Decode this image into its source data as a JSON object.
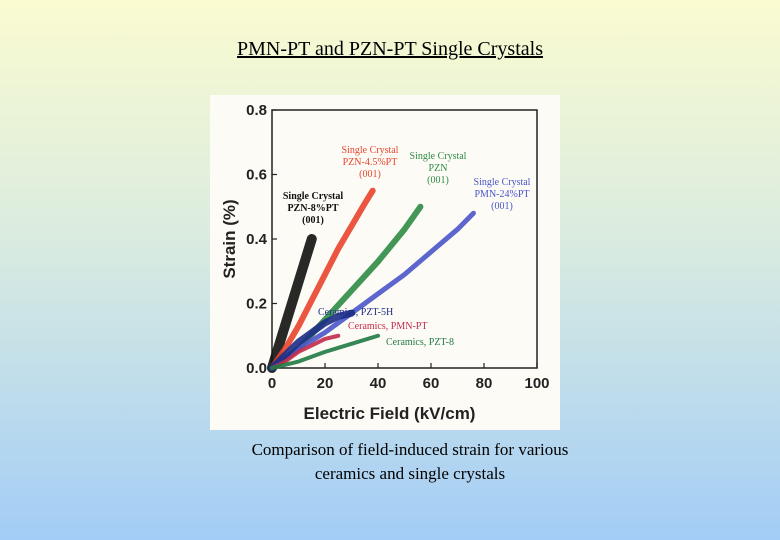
{
  "slide": {
    "title": "PMN-PT and PZN-PT Single Crystals",
    "caption": "Comparison of field-induced strain for various\nceramics and single crystals"
  },
  "chart_data": {
    "type": "line",
    "xlabel": "Electric Field (kV/cm)",
    "ylabel": "Strain (%)",
    "xlim": [
      0,
      100
    ],
    "ylim": [
      0,
      0.8
    ],
    "xticks": [
      "0",
      "20",
      "40",
      "60",
      "80",
      "100"
    ],
    "yticks": [
      "0.0",
      "0.2",
      "0.4",
      "0.6",
      "0.8"
    ],
    "grid": false,
    "legend": "inline labels",
    "series": [
      {
        "name": "Single Crystal PZN-8%PT (001)",
        "label_lines": [
          "Single Crystal",
          "PZN-8%PT",
          "(001)"
        ],
        "color": "#111111",
        "x": [
          0,
          3,
          6,
          9,
          12,
          15
        ],
        "y": [
          0,
          0.08,
          0.16,
          0.24,
          0.32,
          0.4
        ]
      },
      {
        "name": "Single Crystal PZN-4.5%PT (001)",
        "label_lines": [
          "Single Crystal",
          "PZN-4.5%PT",
          "(001)"
        ],
        "color": "#e8442c",
        "x": [
          0,
          5,
          10,
          15,
          20,
          25,
          30,
          35,
          38
        ],
        "y": [
          0,
          0.06,
          0.13,
          0.21,
          0.29,
          0.37,
          0.44,
          0.51,
          0.55
        ]
      },
      {
        "name": "Single Crystal PZN (001)",
        "label_lines": [
          "Single Crystal",
          "PZN",
          "(001)"
        ],
        "color": "#2e8b45",
        "x": [
          0,
          10,
          20,
          30,
          40,
          50,
          56
        ],
        "y": [
          0,
          0.06,
          0.15,
          0.24,
          0.33,
          0.43,
          0.5
        ]
      },
      {
        "name": "Single Crystal PMN-24%PT (001)",
        "label_lines": [
          "Single Crystal",
          "PMN-24%PT",
          "(001)"
        ],
        "color": "#4a55c8",
        "x": [
          0,
          10,
          20,
          30,
          40,
          50,
          60,
          70,
          76
        ],
        "y": [
          0,
          0.06,
          0.11,
          0.17,
          0.23,
          0.29,
          0.36,
          0.43,
          0.48
        ]
      },
      {
        "name": "Ceramics, PZT-5H",
        "label_lines": [
          "Ceramics, PZT-5H"
        ],
        "color": "#1c2d86",
        "x": [
          0,
          5,
          10,
          15,
          20,
          25,
          30
        ],
        "y": [
          0,
          0.04,
          0.08,
          0.11,
          0.14,
          0.16,
          0.17
        ]
      },
      {
        "name": "Ceramics, PMN-PT",
        "label_lines": [
          "Ceramics, PMN-PT"
        ],
        "color": "#c22a4c",
        "x": [
          0,
          5,
          10,
          15,
          20,
          25
        ],
        "y": [
          0,
          0.02,
          0.05,
          0.07,
          0.09,
          0.1
        ]
      },
      {
        "name": "Ceramics, PZT-8",
        "label_lines": [
          "Ceramics, PZT-8"
        ],
        "color": "#1f7a45",
        "x": [
          0,
          10,
          20,
          30,
          40
        ],
        "y": [
          0,
          0.02,
          0.05,
          0.075,
          0.1
        ]
      }
    ]
  }
}
